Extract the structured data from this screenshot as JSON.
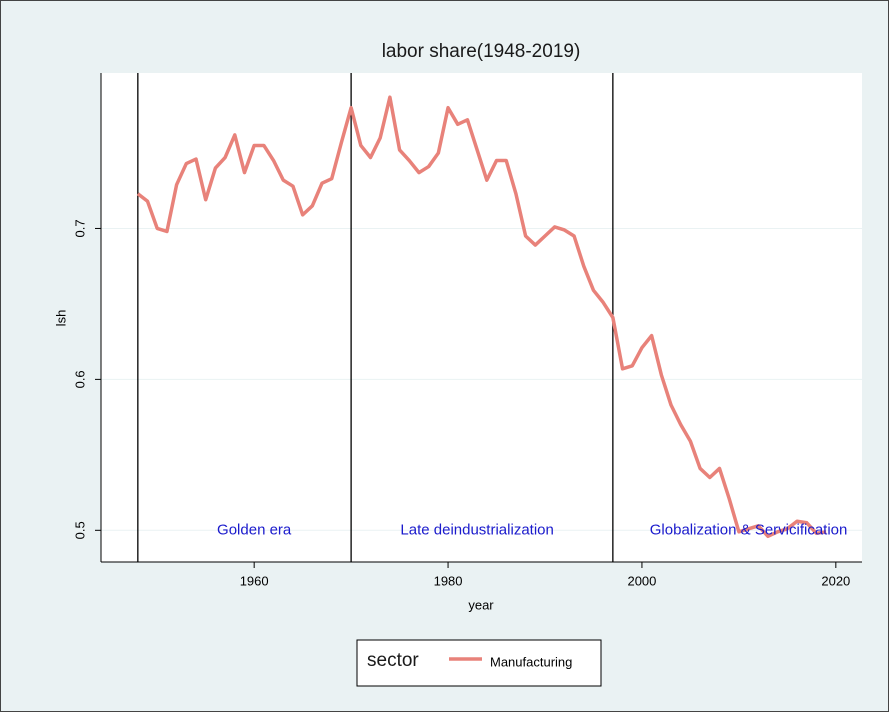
{
  "chart_data": {
    "type": "line",
    "title": "labor share(1948-2019)",
    "x_label": "year",
    "y_label": "lsh",
    "x": [
      1948,
      1949,
      1950,
      1951,
      1952,
      1953,
      1954,
      1955,
      1956,
      1957,
      1958,
      1959,
      1960,
      1961,
      1962,
      1963,
      1964,
      1965,
      1966,
      1967,
      1968,
      1969,
      1970,
      1971,
      1972,
      1973,
      1974,
      1975,
      1976,
      1977,
      1978,
      1979,
      1980,
      1981,
      1982,
      1983,
      1984,
      1985,
      1986,
      1987,
      1988,
      1989,
      1990,
      1991,
      1992,
      1993,
      1994,
      1995,
      1996,
      1997,
      1998,
      1999,
      2000,
      2001,
      2002,
      2003,
      2004,
      2005,
      2006,
      2007,
      2008,
      2009,
      2010,
      2011,
      2012,
      2013,
      2014,
      2015,
      2016,
      2017,
      2018,
      2019
    ],
    "series": [
      {
        "name": "Manufacturing",
        "color": "#e8827a",
        "values": [
          0.723,
          0.718,
          0.7,
          0.698,
          0.729,
          0.743,
          0.746,
          0.719,
          0.74,
          0.747,
          0.762,
          0.737,
          0.755,
          0.755,
          0.745,
          0.732,
          0.728,
          0.709,
          0.715,
          0.73,
          0.733,
          0.757,
          0.78,
          0.755,
          0.747,
          0.76,
          0.787,
          0.752,
          0.745,
          0.737,
          0.741,
          0.75,
          0.78,
          0.769,
          0.772,
          0.752,
          0.732,
          0.745,
          0.745,
          0.723,
          0.695,
          0.689,
          0.695,
          0.701,
          0.699,
          0.695,
          0.675,
          0.659,
          0.651,
          0.641,
          0.607,
          0.609,
          0.621,
          0.629,
          0.603,
          0.583,
          0.57,
          0.559,
          0.541,
          0.535,
          0.541,
          0.521,
          0.499,
          0.501,
          0.503,
          0.496,
          0.499,
          0.501,
          0.506,
          0.505,
          0.498,
          0.499
        ]
      }
    ],
    "xlim": [
      1944.2,
      2022.7
    ],
    "xticks": [
      1960,
      1980,
      2000,
      2020
    ],
    "ylim": [
      0.479,
      0.803
    ],
    "yticks": [
      0.5,
      0.6,
      0.7
    ],
    "grid": true,
    "vlines": [
      1948,
      1970,
      1997
    ],
    "annotations": [
      {
        "text": "Golden era",
        "x": 1960,
        "y": 0.5
      },
      {
        "text": "Late deindustrialization",
        "x": 1983,
        "y": 0.5
      },
      {
        "text": "Globalization & Servicification",
        "x": 2011,
        "y": 0.5
      }
    ],
    "legend_title": "sector",
    "legend_position": "bottom"
  }
}
